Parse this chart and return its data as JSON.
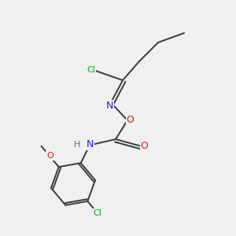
{
  "background_color": "#f0f0f0",
  "bond_color": "#2d6e2d",
  "bond_color_dark": "#3a3a3a",
  "atom_colors": {
    "Cl": "#00aa00",
    "N": "#2020cc",
    "O": "#cc2020",
    "C": "#3a3a3a",
    "H": "#666666"
  },
  "figsize": [
    3.0,
    3.0
  ],
  "dpi": 100
}
